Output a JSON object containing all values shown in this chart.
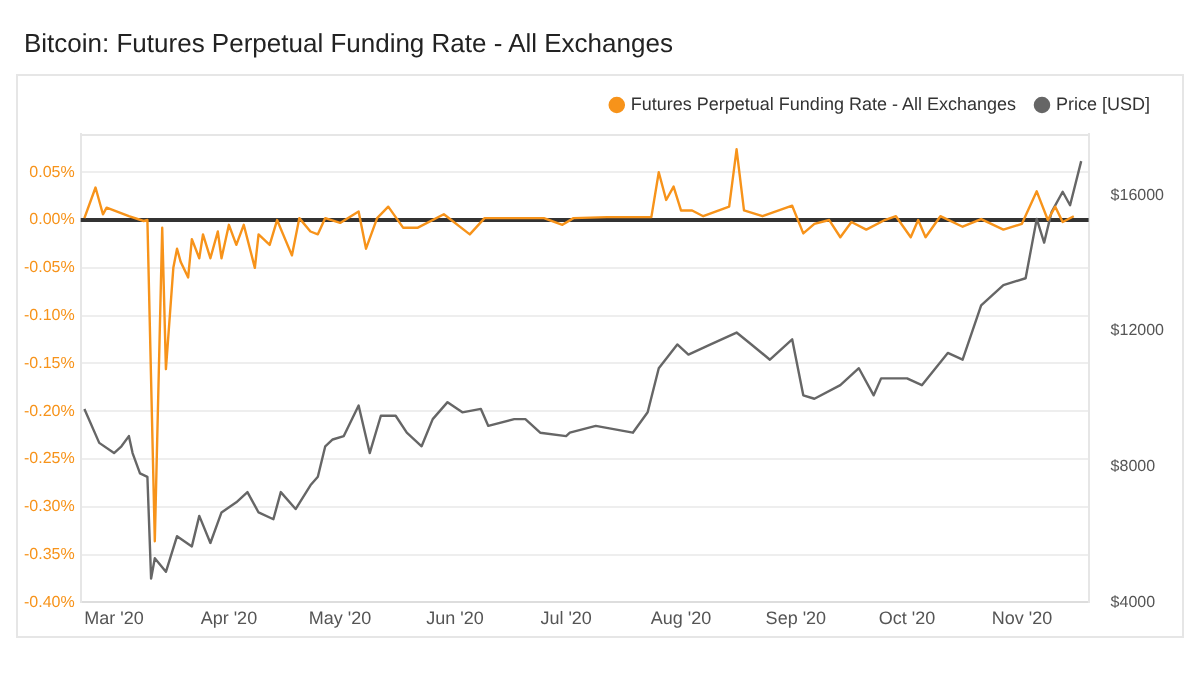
{
  "chart_data": {
    "type": "line",
    "title": "Bitcoin: Futures Perpetual Funding Rate - All Exchanges",
    "xlim": [
      "2020-02-21",
      "2020-11-19"
    ],
    "xticks": [
      {
        "value": "2020-03-01",
        "label": "Mar '20"
      },
      {
        "value": "2020-04-01",
        "label": "Apr '20"
      },
      {
        "value": "2020-05-01",
        "label": "May '20"
      },
      {
        "value": "2020-06-01",
        "label": "Jun '20"
      },
      {
        "value": "2020-07-01",
        "label": "Jul '20"
      },
      {
        "value": "2020-08-01",
        "label": "Aug '20"
      },
      {
        "value": "2020-09-01",
        "label": "Sep '20"
      },
      {
        "value": "2020-10-01",
        "label": "Oct '20"
      },
      {
        "value": "2020-11-01",
        "label": "Nov '20"
      }
    ],
    "ylim": [
      -0.4,
      0.09
    ],
    "yticks": [
      {
        "value": -0.4,
        "label": "-0.40%"
      },
      {
        "value": -0.35,
        "label": "-0.35%"
      },
      {
        "value": -0.3,
        "label": "-0.30%"
      },
      {
        "value": -0.25,
        "label": "-0.25%"
      },
      {
        "value": -0.2,
        "label": "-0.20%"
      },
      {
        "value": -0.15,
        "label": "-0.15%"
      },
      {
        "value": -0.1,
        "label": "-0.10%"
      },
      {
        "value": -0.05,
        "label": "-0.05%"
      },
      {
        "value": 0,
        "label": "0.00%"
      },
      {
        "value": 0.05,
        "label": "0.05%"
      }
    ],
    "y2lim": [
      4000,
      17800
    ],
    "y2ticks": [
      {
        "value": 4000,
        "label": "$4000"
      },
      {
        "value": 8000,
        "label": "$8000"
      },
      {
        "value": 12000,
        "label": "$12000"
      },
      {
        "value": 16000,
        "label": "$16000"
      }
    ],
    "grid": "y",
    "legend": "top right",
    "marker": "none",
    "line_style": "solid",
    "ref_lines": [
      {
        "axis": "y",
        "value": 0,
        "color": "#333333"
      }
    ],
    "series": [
      {
        "name": "Futures Perpetual Funding Rate - All Exchanges",
        "color": "#f7931a",
        "x": [
          "2020-02-22",
          "2020-02-25",
          "2020-02-27",
          "2020-02-28",
          "2020-03-05",
          "2020-03-09",
          "2020-03-10",
          "2020-03-12",
          "2020-03-14",
          "2020-03-15",
          "2020-03-17",
          "2020-03-18",
          "2020-03-19",
          "2020-03-21",
          "2020-03-22",
          "2020-03-24",
          "2020-03-25",
          "2020-03-27",
          "2020-03-29",
          "2020-03-30",
          "2020-04-01",
          "2020-04-03",
          "2020-04-05",
          "2020-04-08",
          "2020-04-09",
          "2020-04-12",
          "2020-04-14",
          "2020-04-18",
          "2020-04-20",
          "2020-04-23",
          "2020-04-25",
          "2020-04-27",
          "2020-05-01",
          "2020-05-06",
          "2020-05-08",
          "2020-05-11",
          "2020-05-14",
          "2020-05-18",
          "2020-05-22",
          "2020-05-29",
          "2020-06-05",
          "2020-06-09",
          "2020-06-16",
          "2020-06-25",
          "2020-06-30",
          "2020-07-03",
          "2020-07-12",
          "2020-07-24",
          "2020-07-26",
          "2020-07-28",
          "2020-07-30",
          "2020-08-01",
          "2020-08-04",
          "2020-08-07",
          "2020-08-14",
          "2020-08-16",
          "2020-08-18",
          "2020-08-23",
          "2020-08-31",
          "2020-09-03",
          "2020-09-06",
          "2020-09-10",
          "2020-09-13",
          "2020-09-16",
          "2020-09-20",
          "2020-09-25",
          "2020-09-28",
          "2020-10-02",
          "2020-10-04",
          "2020-10-06",
          "2020-10-10",
          "2020-10-16",
          "2020-10-21",
          "2020-10-27",
          "2020-11-01",
          "2020-11-05",
          "2020-11-08",
          "2020-11-10",
          "2020-11-12",
          "2020-11-15"
        ],
        "values": [
          0.002,
          0.034,
          0.006,
          0.013,
          0.004,
          -0.001,
          0,
          -0.336,
          -0.008,
          -0.156,
          -0.05,
          -0.03,
          -0.044,
          -0.06,
          -0.02,
          -0.04,
          -0.015,
          -0.04,
          -0.012,
          -0.04,
          -0.005,
          -0.026,
          -0.005,
          -0.05,
          -0.015,
          -0.026,
          0,
          -0.037,
          0.002,
          -0.012,
          -0.015,
          0.002,
          -0.003,
          0.009,
          -0.03,
          0.002,
          0.014,
          -0.008,
          -0.008,
          0.006,
          -0.015,
          0.002,
          0.002,
          0.002,
          -0.005,
          0.002,
          0.003,
          0.003,
          0.05,
          0.021,
          0.035,
          0.01,
          0.01,
          0.004,
          0.014,
          0.074,
          0.01,
          0.004,
          0.015,
          -0.014,
          -0.004,
          0,
          -0.018,
          -0.002,
          -0.01,
          0,
          0.004,
          -0.018,
          0,
          -0.018,
          0.004,
          -0.007,
          0.001,
          -0.01,
          -0.004,
          0.03,
          0,
          0.014,
          -0.002,
          0.004
        ]
      },
      {
        "name": "Price [USD]",
        "color": "#666666",
        "axis": "y2",
        "x": [
          "2020-02-22",
          "2020-02-26",
          "2020-03-01",
          "2020-03-03",
          "2020-03-05",
          "2020-03-06",
          "2020-03-08",
          "2020-03-10",
          "2020-03-11",
          "2020-03-12",
          "2020-03-15",
          "2020-03-18",
          "2020-03-22",
          "2020-03-24",
          "2020-03-27",
          "2020-03-30",
          "2020-04-03",
          "2020-04-06",
          "2020-04-09",
          "2020-04-13",
          "2020-04-15",
          "2020-04-19",
          "2020-04-23",
          "2020-04-25",
          "2020-04-27",
          "2020-04-29",
          "2020-05-02",
          "2020-05-06",
          "2020-05-09",
          "2020-05-12",
          "2020-05-16",
          "2020-05-19",
          "2020-05-23",
          "2020-05-26",
          "2020-05-30",
          "2020-06-03",
          "2020-06-08",
          "2020-06-10",
          "2020-06-17",
          "2020-06-20",
          "2020-06-24",
          "2020-07-01",
          "2020-07-02",
          "2020-07-09",
          "2020-07-19",
          "2020-07-23",
          "2020-07-26",
          "2020-07-31",
          "2020-08-03",
          "2020-08-09",
          "2020-08-16",
          "2020-08-20",
          "2020-08-25",
          "2020-08-31",
          "2020-09-03",
          "2020-09-06",
          "2020-09-13",
          "2020-09-18",
          "2020-09-22",
          "2020-09-24",
          "2020-10-01",
          "2020-10-05",
          "2020-10-12",
          "2020-10-16",
          "2020-10-21",
          "2020-10-27",
          "2020-11-02",
          "2020-11-05",
          "2020-11-07",
          "2020-11-09",
          "2020-11-12",
          "2020-11-14",
          "2020-11-17"
        ],
        "values": [
          9700,
          8700,
          8400,
          8600,
          8900,
          8400,
          7800,
          7700,
          4700,
          5300,
          4900,
          5950,
          5650,
          6550,
          5750,
          6650,
          6950,
          7250,
          6650,
          6450,
          7250,
          6750,
          7450,
          7700,
          8600,
          8800,
          8900,
          9800,
          8400,
          9500,
          9500,
          9000,
          8600,
          9400,
          9900,
          9600,
          9700,
          9200,
          9400,
          9400,
          9000,
          8900,
          9000,
          9200,
          9000,
          9600,
          10900,
          11600,
          11300,
          11600,
          11950,
          11600,
          11150,
          11750,
          10100,
          10000,
          10400,
          10900,
          10100,
          10600,
          10600,
          10400,
          11350,
          11150,
          12750,
          13350,
          13550,
          15300,
          14600,
          15500,
          16100,
          15700,
          17000
        ]
      }
    ]
  }
}
